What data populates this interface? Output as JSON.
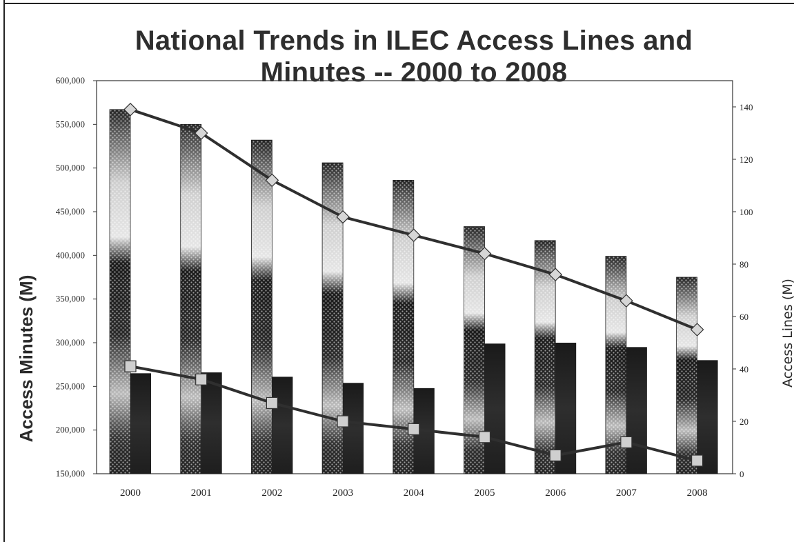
{
  "chart_data": {
    "type": "bar",
    "title": "National Trends in ILEC Access Lines and Minutes -- 2000 to 2008",
    "categories": [
      "2000",
      "2001",
      "2002",
      "2003",
      "2004",
      "2005",
      "2006",
      "2007",
      "2008"
    ],
    "ylabel": "Access Minutes (M)",
    "y2label": "Access Lines (M)",
    "ylim": [
      150000,
      600000
    ],
    "y2lim": [
      0,
      150
    ],
    "yticks": [
      "150,000",
      "200,000",
      "250,000",
      "300,000",
      "350,000",
      "400,000",
      "450,000",
      "500,000",
      "550,000",
      "600,000"
    ],
    "y2ticks": [
      "0",
      "20",
      "40",
      "60",
      "80",
      "100",
      "120",
      "140"
    ],
    "series": [
      {
        "kind": "bar",
        "axis": "left",
        "pattern": "dotted-gradient",
        "values": [
          567000,
          550000,
          532000,
          506000,
          486000,
          433000,
          417000,
          399000,
          375000
        ]
      },
      {
        "kind": "bar",
        "axis": "left",
        "pattern": "solid-dark",
        "values": [
          265000,
          266000,
          261000,
          254000,
          248000,
          299000,
          300000,
          295000,
          280000
        ]
      },
      {
        "kind": "line",
        "axis": "right",
        "marker": "diamond",
        "values": [
          139,
          130,
          112,
          98,
          91,
          84,
          76,
          66,
          55
        ]
      },
      {
        "kind": "line",
        "axis": "right",
        "marker": "square",
        "values": [
          41,
          36,
          27,
          20,
          17,
          14,
          7,
          12,
          5
        ]
      }
    ],
    "grid": false,
    "colors": {
      "bar_dark": "#222222",
      "bar_light": "#bdbdbd",
      "line": "#333333",
      "marker_fill": "#cfcfcf"
    }
  }
}
